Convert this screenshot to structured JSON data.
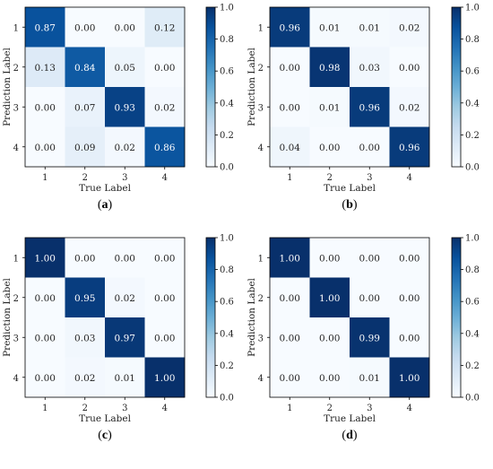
{
  "colors": {
    "low": "#f7fbff",
    "high": "#08306b",
    "frame": "#000000",
    "text_dark": "#222222",
    "text_light": "#ffffff"
  },
  "chart_data": [
    {
      "type": "heatmap",
      "panel_label": "(a)",
      "xlabel": "True Label",
      "ylabel": "Prediction Label",
      "x_categories": [
        "1",
        "2",
        "3",
        "4"
      ],
      "y_categories": [
        "1",
        "2",
        "3",
        "4"
      ],
      "values": [
        [
          0.87,
          0.0,
          0.0,
          0.12
        ],
        [
          0.13,
          0.84,
          0.05,
          0.0
        ],
        [
          0.0,
          0.07,
          0.93,
          0.02
        ],
        [
          0.0,
          0.09,
          0.02,
          0.86
        ]
      ],
      "value_labels": [
        [
          "0.87",
          "0.00",
          "0.00",
          "0.12"
        ],
        [
          "0.13",
          "0.84",
          "0.05",
          "0.00"
        ],
        [
          "0.00",
          "0.07",
          "0.93",
          "0.02"
        ],
        [
          "0.00",
          "0.09",
          "0.02",
          "0.86"
        ]
      ],
      "colorbar": {
        "range": [
          0.0,
          1.0
        ],
        "ticks": [
          "0.0",
          "0.2",
          "0.4",
          "0.6",
          "0.8",
          "1.0"
        ]
      }
    },
    {
      "type": "heatmap",
      "panel_label": "(b)",
      "xlabel": "True Label",
      "ylabel": "Prediction Label",
      "x_categories": [
        "1",
        "2",
        "3",
        "4"
      ],
      "y_categories": [
        "1",
        "2",
        "3",
        "4"
      ],
      "values": [
        [
          0.96,
          0.01,
          0.01,
          0.02
        ],
        [
          0.0,
          0.98,
          0.03,
          0.0
        ],
        [
          0.0,
          0.01,
          0.96,
          0.02
        ],
        [
          0.04,
          0.0,
          0.0,
          0.96
        ]
      ],
      "value_labels": [
        [
          "0.96",
          "0.01",
          "0.01",
          "0.02"
        ],
        [
          "0.00",
          "0.98",
          "0.03",
          "0.00"
        ],
        [
          "0.00",
          "0.01",
          "0.96",
          "0.02"
        ],
        [
          "0.04",
          "0.00",
          "0.00",
          "0.96"
        ]
      ],
      "colorbar": {
        "range": [
          0.0,
          1.0
        ],
        "ticks": [
          "0.0",
          "0.2",
          "0.4",
          "0.6",
          "0.8",
          "1.0"
        ]
      }
    },
    {
      "type": "heatmap",
      "panel_label": "(c)",
      "xlabel": "True Label",
      "ylabel": "Prediction Label",
      "x_categories": [
        "1",
        "2",
        "3",
        "4"
      ],
      "y_categories": [
        "1",
        "2",
        "3",
        "4"
      ],
      "values": [
        [
          1.0,
          0.0,
          0.0,
          0.0
        ],
        [
          0.0,
          0.95,
          0.02,
          0.0
        ],
        [
          0.0,
          0.03,
          0.97,
          0.0
        ],
        [
          0.0,
          0.02,
          0.01,
          1.0
        ]
      ],
      "value_labels": [
        [
          "1.00",
          "0.00",
          "0.00",
          "0.00"
        ],
        [
          "0.00",
          "0.95",
          "0.02",
          "0.00"
        ],
        [
          "0.00",
          "0.03",
          "0.97",
          "0.00"
        ],
        [
          "0.00",
          "0.02",
          "0.01",
          "1.00"
        ]
      ],
      "colorbar": {
        "range": [
          0.0,
          1.0
        ],
        "ticks": [
          "0.0",
          "0.2",
          "0.4",
          "0.6",
          "0.8",
          "1.0"
        ]
      }
    },
    {
      "type": "heatmap",
      "panel_label": "(d)",
      "xlabel": "True Label",
      "ylabel": "Prediction Label",
      "x_categories": [
        "1",
        "2",
        "3",
        "4"
      ],
      "y_categories": [
        "1",
        "2",
        "3",
        "4"
      ],
      "values": [
        [
          1.0,
          0.0,
          0.0,
          0.0
        ],
        [
          0.0,
          1.0,
          0.0,
          0.0
        ],
        [
          0.0,
          0.0,
          0.99,
          0.0
        ],
        [
          0.0,
          0.0,
          0.01,
          1.0
        ]
      ],
      "value_labels": [
        [
          "1.00",
          "0.00",
          "0.00",
          "0.00"
        ],
        [
          "0.00",
          "1.00",
          "0.00",
          "0.00"
        ],
        [
          "0.00",
          "0.00",
          "0.99",
          "0.00"
        ],
        [
          "0.00",
          "0.00",
          "0.01",
          "1.00"
        ]
      ],
      "colorbar": {
        "range": [
          0.0,
          1.0
        ],
        "ticks": [
          "0.0",
          "0.2",
          "0.4",
          "0.6",
          "0.8",
          "1.0"
        ]
      }
    }
  ]
}
